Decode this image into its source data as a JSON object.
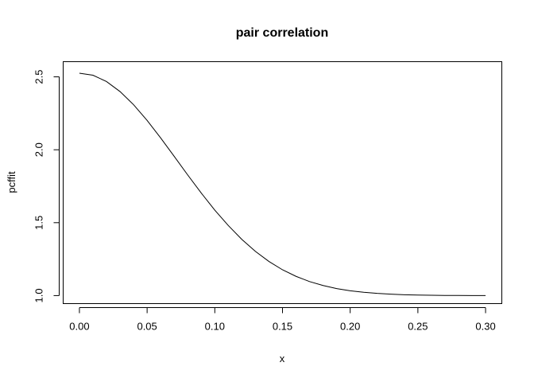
{
  "chart_data": {
    "type": "line",
    "title": "pair correlation",
    "x_label": "x",
    "y_label": "pcffit",
    "x": [
      0,
      0.01,
      0.02,
      0.03,
      0.04,
      0.05,
      0.06,
      0.07,
      0.08,
      0.09,
      0.1,
      0.11,
      0.12,
      0.13,
      0.14,
      0.15,
      0.16,
      0.17,
      0.18,
      0.19,
      0.2,
      0.21,
      0.22,
      0.23,
      0.24,
      0.25,
      0.26,
      0.27,
      0.28,
      0.29,
      0.3
    ],
    "series": [
      {
        "name": "pcffit",
        "color": "#000000",
        "values": [
          2.525,
          2.511,
          2.468,
          2.399,
          2.309,
          2.201,
          2.081,
          1.955,
          1.827,
          1.703,
          1.586,
          1.48,
          1.385,
          1.303,
          1.234,
          1.177,
          1.132,
          1.096,
          1.069,
          1.048,
          1.033,
          1.023,
          1.015,
          1.01,
          1.006,
          1.004,
          1.002,
          1.001,
          1.001,
          1.0,
          1.0
        ]
      }
    ],
    "xlim": [
      -0.012,
      0.312
    ],
    "ylim": [
      0.945,
      2.604
    ],
    "xticks": [
      {
        "value": 0,
        "label": "0.00"
      },
      {
        "value": 0.05,
        "label": "0.05"
      },
      {
        "value": 0.1,
        "label": "0.10"
      },
      {
        "value": 0.15,
        "label": "0.15"
      },
      {
        "value": 0.2,
        "label": "0.20"
      },
      {
        "value": 0.25,
        "label": "0.25"
      },
      {
        "value": 0.3,
        "label": "0.30"
      }
    ],
    "yticks": [
      {
        "value": 1,
        "label": "1.0"
      },
      {
        "value": 1.5,
        "label": "1.5"
      },
      {
        "value": 2,
        "label": "2.0"
      },
      {
        "value": 2.5,
        "label": "2.5"
      }
    ]
  }
}
